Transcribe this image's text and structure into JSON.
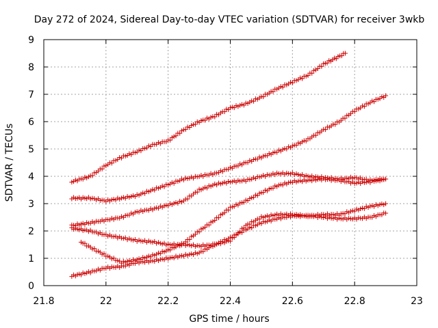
{
  "chart_data": {
    "type": "scatter",
    "title": "Day 272 of 2024, Sidereal Day-to-day VTEC variation (SDTVAR) for receiver 3wkb",
    "xlabel": "GPS time / hours",
    "ylabel": "SDTVAR / TECUs",
    "xlim": [
      21.8,
      23
    ],
    "ylim": [
      0,
      9
    ],
    "xticks": [
      "21.8",
      "22",
      "22.2",
      "22.4",
      "22.6",
      "22.8",
      "23"
    ],
    "yticks": [
      "0",
      "1",
      "2",
      "3",
      "4",
      "5",
      "6",
      "7",
      "8",
      "9"
    ],
    "grid": true,
    "marker": "plus",
    "color": "#cc0000",
    "series": [
      {
        "x": [
          21.89,
          21.95,
          22.0,
          22.05,
          22.1,
          22.15,
          22.2,
          22.25,
          22.3,
          22.35,
          22.4,
          22.45,
          22.5,
          22.55,
          22.6,
          22.65,
          22.7,
          22.77
        ],
        "y": [
          3.8,
          4.0,
          4.4,
          4.7,
          4.9,
          5.15,
          5.3,
          5.7,
          6.0,
          6.2,
          6.5,
          6.65,
          6.9,
          7.2,
          7.45,
          7.7,
          8.1,
          8.5
        ]
      },
      {
        "x": [
          21.89,
          21.95,
          22.0,
          22.05,
          22.1,
          22.15,
          22.2,
          22.25,
          22.3,
          22.35,
          22.4,
          22.45,
          22.5,
          22.55,
          22.6,
          22.65,
          22.7,
          22.75,
          22.8,
          22.85,
          22.9
        ],
        "y": [
          3.2,
          3.2,
          3.1,
          3.2,
          3.3,
          3.5,
          3.7,
          3.9,
          4.0,
          4.1,
          4.3,
          4.5,
          4.7,
          4.9,
          5.1,
          5.35,
          5.7,
          6.0,
          6.4,
          6.7,
          6.95
        ]
      },
      {
        "x": [
          21.89,
          21.95,
          22.0,
          22.05,
          22.1,
          22.15,
          22.2,
          22.25,
          22.3,
          22.35,
          22.4,
          22.45,
          22.5,
          22.55,
          22.6,
          22.65,
          22.7,
          22.75,
          22.8,
          22.85,
          22.9
        ],
        "y": [
          2.2,
          2.3,
          2.4,
          2.5,
          2.7,
          2.8,
          2.95,
          3.1,
          3.5,
          3.7,
          3.8,
          3.85,
          4.0,
          4.1,
          4.1,
          4.0,
          3.95,
          3.9,
          3.95,
          3.85,
          3.9
        ]
      },
      {
        "x": [
          21.89,
          21.95,
          22.0,
          22.05,
          22.1,
          22.15,
          22.2,
          22.25,
          22.3,
          22.35,
          22.4,
          22.45,
          22.5,
          22.55,
          22.6,
          22.65,
          22.7,
          22.75,
          22.8,
          22.85,
          22.9
        ],
        "y": [
          2.1,
          2.0,
          1.85,
          1.75,
          1.65,
          1.6,
          1.5,
          1.5,
          1.45,
          1.5,
          1.65,
          2.2,
          2.5,
          2.6,
          2.6,
          2.55,
          2.5,
          2.45,
          2.45,
          2.5,
          2.65
        ]
      },
      {
        "x": [
          21.92,
          21.95,
          22.0,
          22.05,
          22.1,
          22.15,
          22.2,
          22.25,
          22.3,
          22.35,
          22.4,
          22.45,
          22.5,
          22.55,
          22.6,
          22.65,
          22.7,
          22.75,
          22.8,
          22.85,
          22.9
        ],
        "y": [
          1.6,
          1.4,
          1.1,
          0.85,
          0.95,
          1.1,
          1.3,
          1.55,
          2.0,
          2.4,
          2.85,
          3.1,
          3.4,
          3.65,
          3.8,
          3.85,
          3.9,
          3.85,
          3.75,
          3.8,
          3.9
        ]
      },
      {
        "x": [
          21.89,
          21.95,
          22.0,
          22.05,
          22.1,
          22.15,
          22.2,
          22.25,
          22.3,
          22.35,
          22.4,
          22.45,
          22.5,
          22.55,
          22.6,
          22.65,
          22.7,
          22.75,
          22.8,
          22.85,
          22.9
        ],
        "y": [
          0.35,
          0.5,
          0.65,
          0.7,
          0.85,
          0.9,
          1.0,
          1.1,
          1.2,
          1.5,
          1.75,
          2.05,
          2.3,
          2.45,
          2.55,
          2.55,
          2.6,
          2.6,
          2.75,
          2.9,
          3.0
        ]
      }
    ]
  }
}
